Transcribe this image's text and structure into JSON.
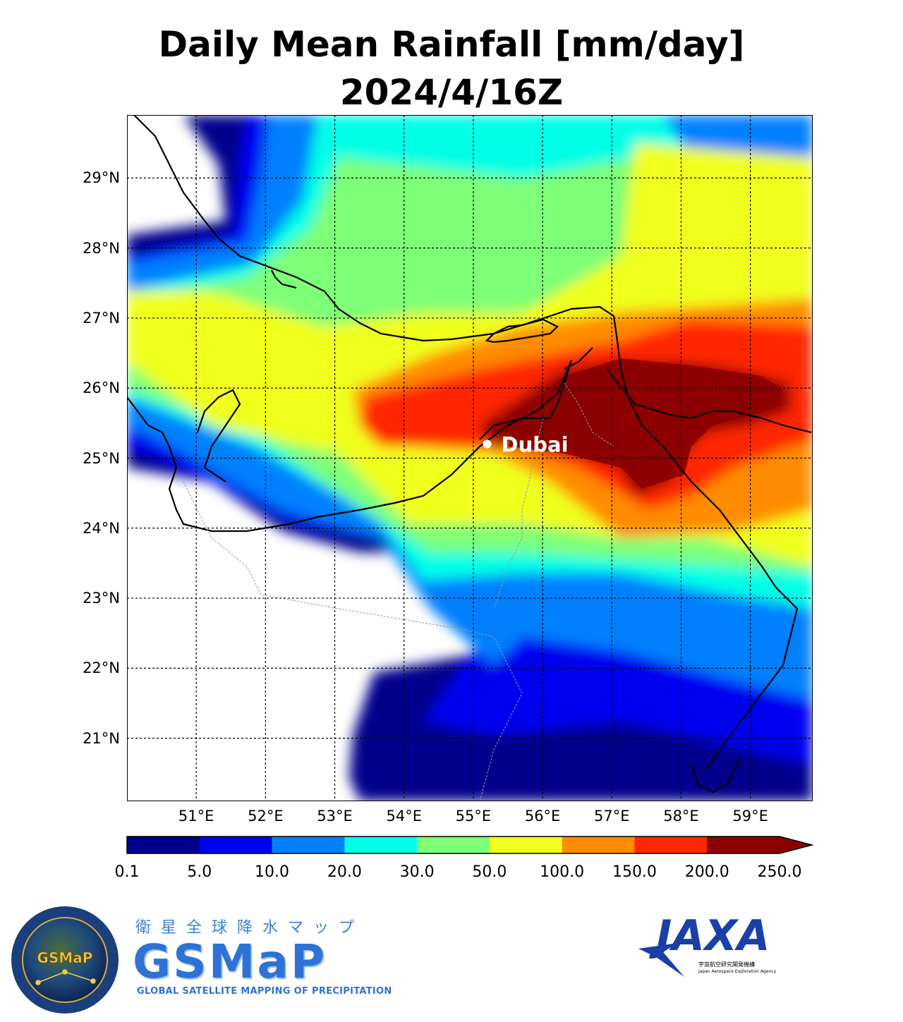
{
  "title": {
    "line1": "Daily Mean Rainfall [mm/day]",
    "line2": "2024/4/16Z"
  },
  "map": {
    "lon_range": [
      50.0,
      59.9
    ],
    "lat_range": [
      20.1,
      29.9
    ],
    "lat_ticks": [
      {
        "value": 29,
        "label": "29°N"
      },
      {
        "value": 28,
        "label": "28°N"
      },
      {
        "value": 27,
        "label": "27°N"
      },
      {
        "value": 26,
        "label": "26°N"
      },
      {
        "value": 25,
        "label": "25°N"
      },
      {
        "value": 24,
        "label": "24°N"
      },
      {
        "value": 23,
        "label": "23°N"
      },
      {
        "value": 22,
        "label": "22°N"
      },
      {
        "value": 21,
        "label": "21°N"
      }
    ],
    "lon_ticks": [
      {
        "value": 51,
        "label": "51°E"
      },
      {
        "value": 52,
        "label": "52°E"
      },
      {
        "value": 53,
        "label": "53°E"
      },
      {
        "value": 54,
        "label": "54°E"
      },
      {
        "value": 55,
        "label": "55°E"
      },
      {
        "value": 56,
        "label": "56°E"
      },
      {
        "value": 57,
        "label": "57°E"
      },
      {
        "value": 58,
        "label": "58°E"
      },
      {
        "value": 59,
        "label": "59°E"
      }
    ],
    "city": {
      "name": "Dubai",
      "lon": 55.2,
      "lat": 25.2
    }
  },
  "colorbar": {
    "levels": [
      "0.1",
      "5.0",
      "10.0",
      "20.0",
      "30.0",
      "50.0",
      "100.0",
      "150.0",
      "200.0",
      "250.0"
    ],
    "colors": [
      "#00008c",
      "#0000f0",
      "#0080ff",
      "#00ffe6",
      "#7dff78",
      "#f0ff1e",
      "#ff8c00",
      "#ff2800",
      "#8c0000"
    ],
    "extend": "max"
  },
  "logos": {
    "gsmap_kanji": "衛星全球降水マップ",
    "gsmap_word": "GSMaP",
    "gsmap_tagline": "GLOBAL SATELLITE MAPPING OF PRECIPITATION",
    "seal_text": "GSMaP",
    "jaxa_word": "JAXA",
    "jaxa_sub_jp": "宇宙航空研究開発機構",
    "jaxa_sub_en": "Japan Aerospace Exploration Agency"
  }
}
